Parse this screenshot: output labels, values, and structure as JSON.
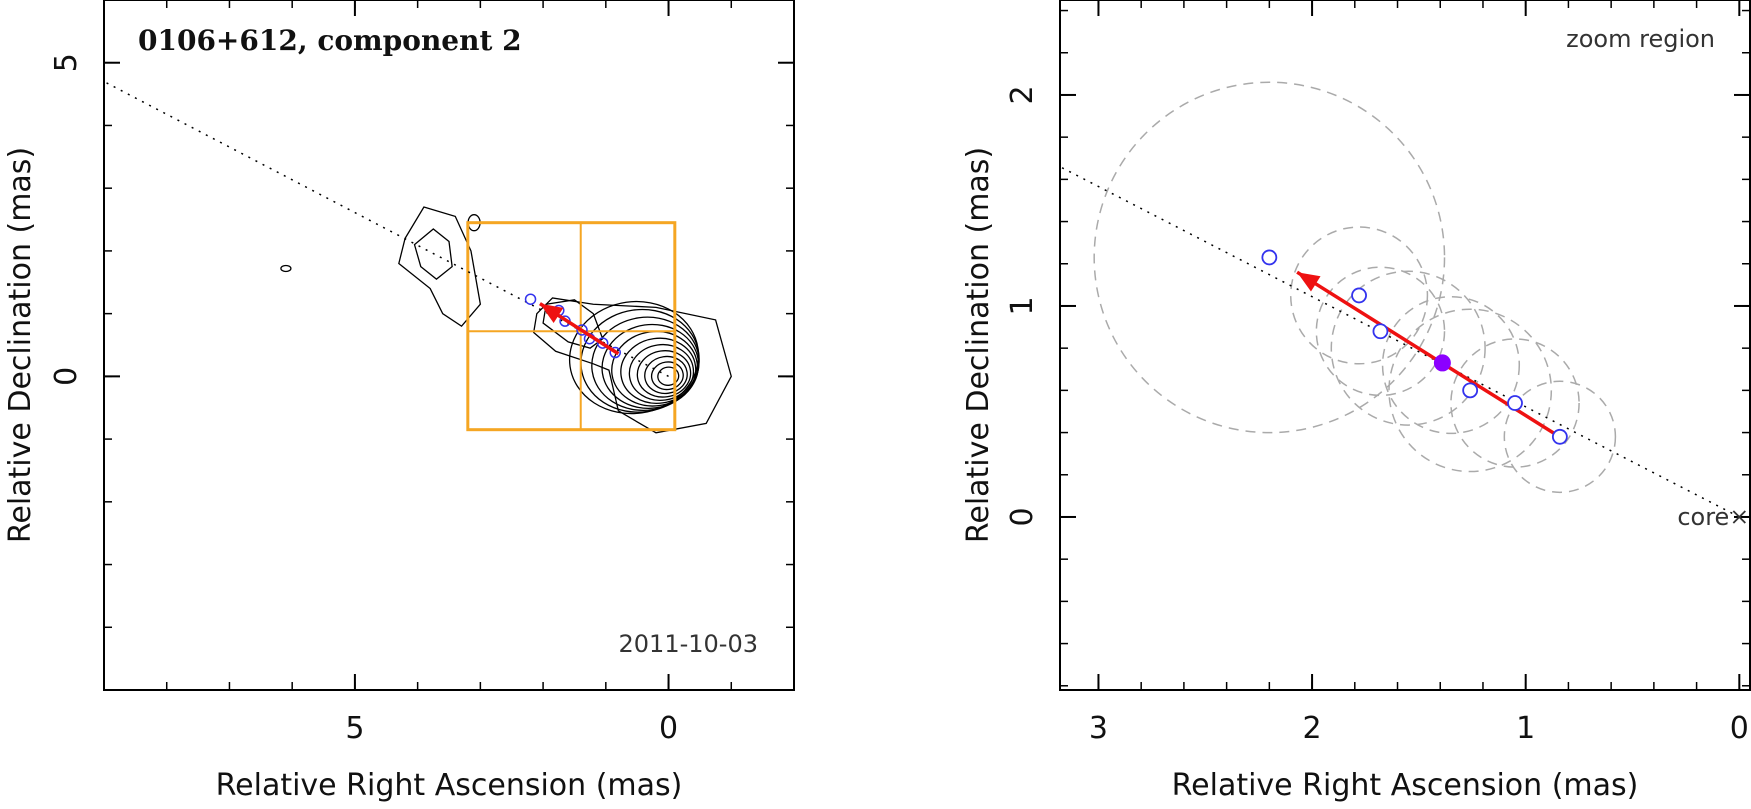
{
  "chart_data": [
    {
      "type": "scatter",
      "panel": "left",
      "title": "0106+612, component 2",
      "xlabel": "Relative Right Ascension (mas)",
      "ylabel": "Relative Declination (mas)",
      "xlim": [
        9.0,
        -2.0
      ],
      "ylim": [
        -5.0,
        6.0
      ],
      "xticks": [
        5,
        0
      ],
      "yticks": [
        5,
        0
      ],
      "epoch_label": "2011-10-03",
      "colors": {
        "points": "#3333ee",
        "vector": "#ee1111",
        "zoom_box": "#f5a623",
        "contours": "#000000",
        "axis_line": "#000000"
      },
      "axis_line": {
        "description": "dotted jet axis",
        "through": [
          [
            0,
            0
          ],
          [
            9.0,
            4.7
          ]
        ]
      },
      "points": [
        {
          "x": 2.2,
          "y": 1.23
        },
        {
          "x": 1.75,
          "y": 1.05
        },
        {
          "x": 1.65,
          "y": 0.88
        },
        {
          "x": 1.38,
          "y": 0.74
        },
        {
          "x": 1.26,
          "y": 0.6
        },
        {
          "x": 1.05,
          "y": 0.53
        },
        {
          "x": 0.85,
          "y": 0.38
        }
      ],
      "mean_position": {
        "x": 1.38,
        "y": 0.74
      },
      "vector": {
        "from": [
          0.8,
          0.36
        ],
        "to": [
          2.05,
          1.16
        ]
      },
      "zoom_region": {
        "x_range": [
          3.2,
          -0.1
        ],
        "y_range": [
          -0.85,
          2.45
        ],
        "grid_x": 1.4,
        "grid_y": 0.72
      }
    },
    {
      "type": "scatter",
      "panel": "right",
      "title": "zoom region",
      "xlabel": "Relative Right Ascension (mas)",
      "ylabel": "Relative Declination (mas)",
      "xlim": [
        3.18,
        -0.05
      ],
      "ylim": [
        -0.82,
        2.45
      ],
      "xticks": [
        3,
        2,
        1,
        0
      ],
      "yticks": [
        2,
        1,
        0
      ],
      "core_label": "core",
      "colors": {
        "points": "#3333ee",
        "mean": "#8b00ff",
        "vector": "#ee1111",
        "error_circles": "#aaaaaa",
        "axis_line": "#000000"
      },
      "points": [
        {
          "x": 2.2,
          "y": 1.23,
          "err_radius": 0.82
        },
        {
          "x": 1.78,
          "y": 1.05,
          "err_radius": 0.32
        },
        {
          "x": 1.68,
          "y": 0.88,
          "err_radius": 0.3
        },
        {
          "x": 1.26,
          "y": 0.6,
          "err_radius": 0.38
        },
        {
          "x": 1.05,
          "y": 0.54,
          "err_radius": 0.3
        },
        {
          "x": 0.84,
          "y": 0.38,
          "err_radius": 0.26
        },
        {
          "x": 1.55,
          "y": 0.8,
          "err_radius": 0.36
        },
        {
          "x": 1.35,
          "y": 0.72,
          "err_radius": 0.32
        }
      ],
      "mean_position": {
        "x": 1.39,
        "y": 0.73
      },
      "vector": {
        "from": [
          0.81,
          0.36
        ],
        "to": [
          2.07,
          1.16
        ]
      },
      "core": {
        "x": 0.0,
        "y": 0.0
      },
      "axis_line": {
        "through": [
          [
            0,
            0
          ],
          [
            3.18,
            1.66
          ]
        ]
      }
    }
  ]
}
